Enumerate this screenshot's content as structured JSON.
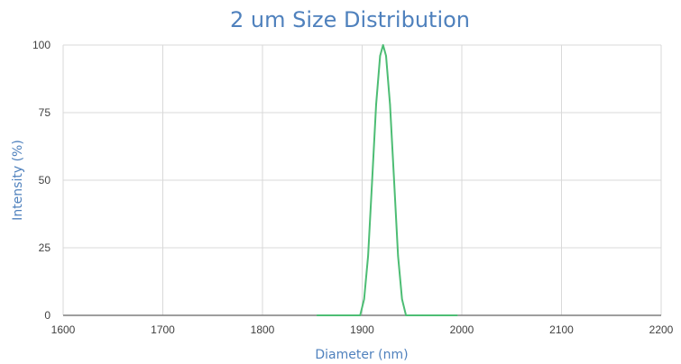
{
  "chart_data": {
    "type": "line",
    "title": "2 um Size Distribution",
    "xlabel": "Diameter (nm)",
    "ylabel": "Intensity (%)",
    "xlim": [
      1600,
      2200
    ],
    "ylim": [
      0,
      100
    ],
    "x_ticks": [
      "1600",
      "1700",
      "1800",
      "1900",
      "2000",
      "2100",
      "2200"
    ],
    "y_ticks": [
      "0",
      "25",
      "50",
      "75",
      "100"
    ],
    "grid": true,
    "legend": "none",
    "series": [
      {
        "color": "#4dbd74",
        "x": [
          1855,
          1875,
          1898,
          1902,
          1906,
          1910,
          1914,
          1918,
          1921,
          1924,
          1928,
          1932,
          1936,
          1940,
          1944,
          1960,
          1980,
          1995
        ],
        "y": [
          0,
          0,
          0,
          6,
          22,
          50,
          78,
          96,
          100,
          96,
          78,
          50,
          22,
          6,
          0,
          0,
          0,
          0
        ]
      }
    ]
  }
}
